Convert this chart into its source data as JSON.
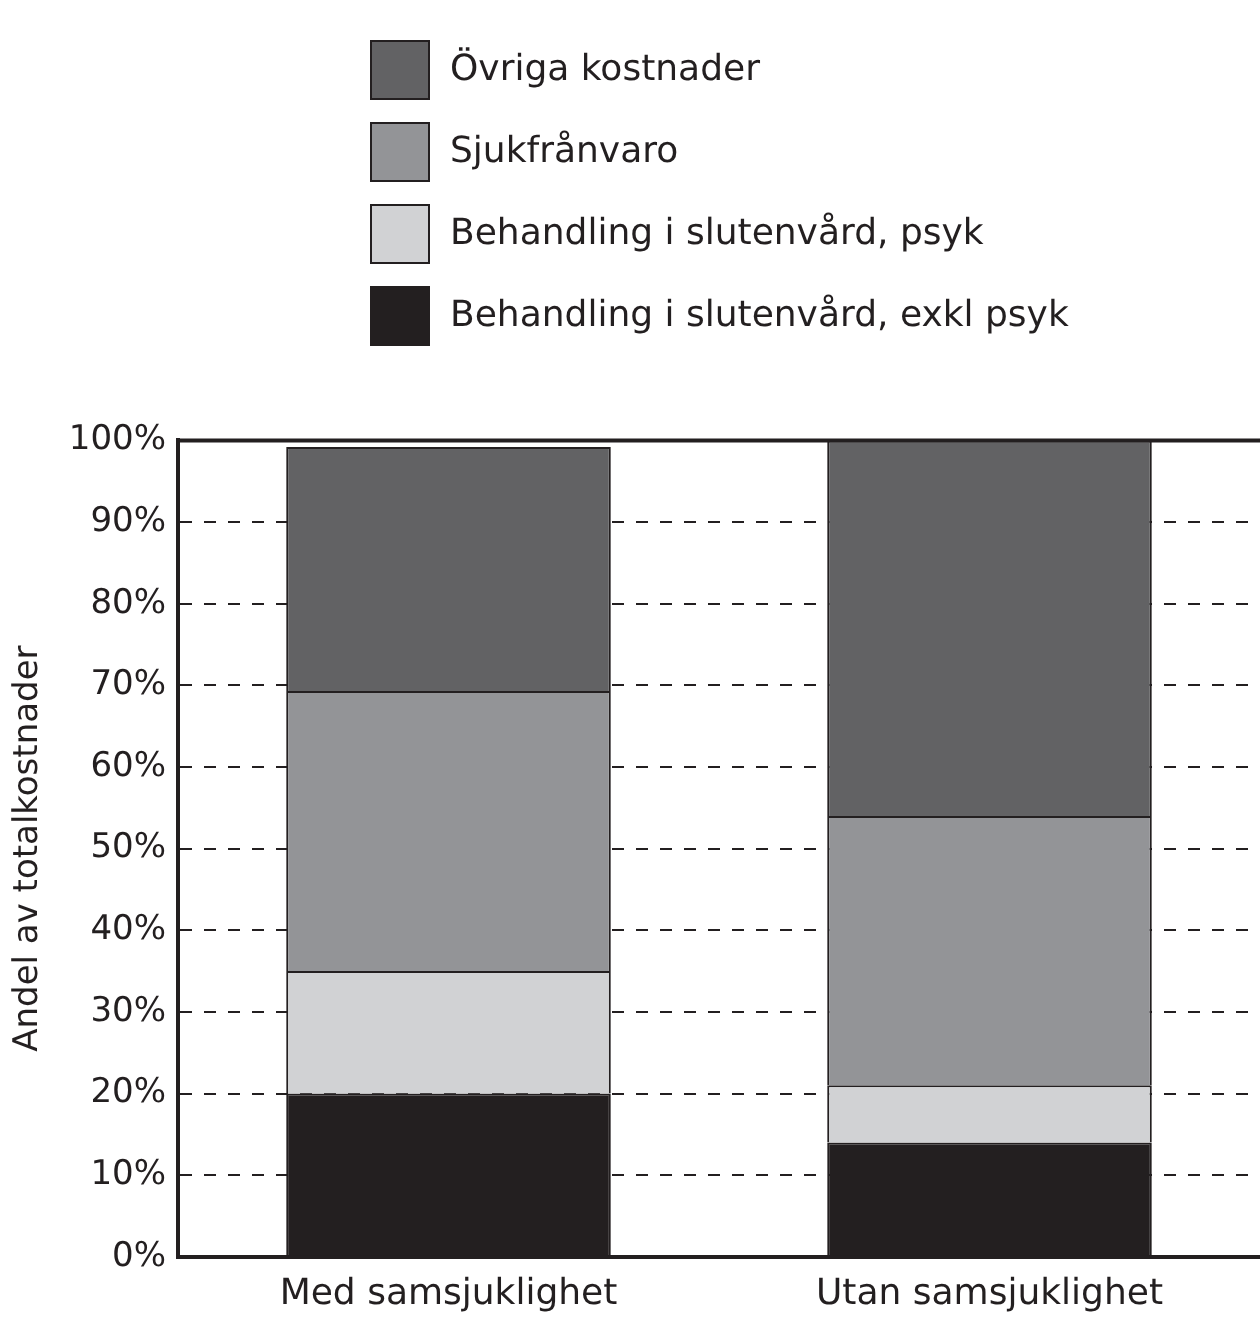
{
  "chart_data": {
    "type": "bar",
    "stacked": true,
    "ylabel": "Andel av totalkostnader",
    "categories": [
      "Med samsjuklighet",
      "Utan samsjuklighet"
    ],
    "series": [
      {
        "name": "Behandling i slutenvård, exkl psyk",
        "color": "#231f20",
        "values": [
          20,
          14
        ]
      },
      {
        "name": "Behandling i slutenvård, psyk",
        "color": "#d1d2d4",
        "values": [
          15,
          7
        ]
      },
      {
        "name": "Sjukfrånvaro",
        "color": "#939497",
        "values": [
          34.3,
          33
        ]
      },
      {
        "name": "Övriga kostnader",
        "color": "#626264",
        "values": [
          29.9,
          46
        ]
      }
    ],
    "ylim": [
      0,
      100
    ],
    "yticks": [
      {
        "value": 0,
        "label": "0%"
      },
      {
        "value": 10,
        "label": "10%"
      },
      {
        "value": 20,
        "label": "20%"
      },
      {
        "value": 30,
        "label": "30%"
      },
      {
        "value": 40,
        "label": "40%"
      },
      {
        "value": 50,
        "label": "50%"
      },
      {
        "value": 60,
        "label": "60%"
      },
      {
        "value": 70,
        "label": "70%"
      },
      {
        "value": 80,
        "label": "80%"
      },
      {
        "value": 90,
        "label": "90%"
      },
      {
        "value": 100,
        "label": "100%"
      }
    ],
    "grid": "y",
    "legend": "top"
  }
}
